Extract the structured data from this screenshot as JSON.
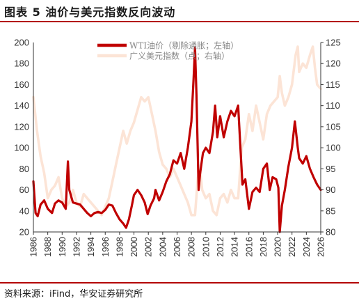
{
  "figure": {
    "title": "图表 5  油价与美元指数反向波动",
    "source": "资料来源：iFind，华安证券研究所"
  },
  "chart_data": {
    "type": "line",
    "title": "",
    "xlabel": "",
    "ylabel_left": "",
    "ylabel_right": "",
    "x_ticks": [
      1986,
      1988,
      1990,
      1992,
      1994,
      1996,
      1998,
      2000,
      2002,
      2004,
      2006,
      2008,
      2010,
      2012,
      2014,
      2016,
      2018,
      2020,
      2022,
      2024,
      2026
    ],
    "xlim": [
      1986,
      2026
    ],
    "y_left": {
      "lim": [
        20,
        200
      ],
      "ticks": [
        20,
        40,
        60,
        80,
        100,
        120,
        140,
        160,
        180,
        200
      ]
    },
    "y_right": {
      "lim": [
        80,
        125
      ],
      "ticks": [
        80,
        85,
        90,
        95,
        100,
        105,
        110,
        115,
        120,
        125
      ]
    },
    "grid": false,
    "legend_position": "top-center",
    "series": [
      {
        "name": "WTI油价（剔除通胀；左轴）",
        "axis": "left",
        "color": "#c00000",
        "points": [
          [
            1986.0,
            68
          ],
          [
            1986.3,
            38
          ],
          [
            1986.6,
            35
          ],
          [
            1987.0,
            46
          ],
          [
            1987.5,
            50
          ],
          [
            1988.0,
            42
          ],
          [
            1988.6,
            38
          ],
          [
            1989.0,
            47
          ],
          [
            1989.5,
            50
          ],
          [
            1990.0,
            48
          ],
          [
            1990.5,
            42
          ],
          [
            1990.8,
            87
          ],
          [
            1991.0,
            60
          ],
          [
            1991.5,
            48
          ],
          [
            1992.0,
            47
          ],
          [
            1992.5,
            46
          ],
          [
            1993.0,
            42
          ],
          [
            1993.5,
            38
          ],
          [
            1994.0,
            35
          ],
          [
            1994.5,
            38
          ],
          [
            1995.0,
            39
          ],
          [
            1995.5,
            38
          ],
          [
            1996.0,
            41
          ],
          [
            1996.5,
            46
          ],
          [
            1997.0,
            45
          ],
          [
            1997.5,
            38
          ],
          [
            1998.0,
            32
          ],
          [
            1998.5,
            28
          ],
          [
            1998.9,
            24
          ],
          [
            1999.3,
            32
          ],
          [
            1999.7,
            45
          ],
          [
            2000.0,
            55
          ],
          [
            2000.5,
            60
          ],
          [
            2001.0,
            55
          ],
          [
            2001.5,
            48
          ],
          [
            2001.9,
            37
          ],
          [
            2002.3,
            45
          ],
          [
            2002.8,
            52
          ],
          [
            2003.0,
            60
          ],
          [
            2003.5,
            50
          ],
          [
            2004.0,
            58
          ],
          [
            2004.5,
            68
          ],
          [
            2005.0,
            75
          ],
          [
            2005.5,
            88
          ],
          [
            2006.0,
            85
          ],
          [
            2006.5,
            95
          ],
          [
            2007.0,
            80
          ],
          [
            2007.5,
            100
          ],
          [
            2008.0,
            125
          ],
          [
            2008.3,
            165
          ],
          [
            2008.5,
            195
          ],
          [
            2008.7,
            150
          ],
          [
            2009.0,
            60
          ],
          [
            2009.2,
            75
          ],
          [
            2009.6,
            95
          ],
          [
            2010.0,
            100
          ],
          [
            2010.5,
            95
          ],
          [
            2011.0,
            115
          ],
          [
            2011.3,
            140
          ],
          [
            2011.6,
            110
          ],
          [
            2012.0,
            130
          ],
          [
            2012.5,
            110
          ],
          [
            2013.0,
            125
          ],
          [
            2013.5,
            135
          ],
          [
            2014.0,
            130
          ],
          [
            2014.5,
            140
          ],
          [
            2014.9,
            90
          ],
          [
            2015.1,
            65
          ],
          [
            2015.5,
            70
          ],
          [
            2016.0,
            42
          ],
          [
            2016.5,
            58
          ],
          [
            2017.0,
            62
          ],
          [
            2017.5,
            58
          ],
          [
            2018.0,
            80
          ],
          [
            2018.5,
            85
          ],
          [
            2018.9,
            60
          ],
          [
            2019.3,
            72
          ],
          [
            2019.8,
            70
          ],
          [
            2020.1,
            62
          ],
          [
            2020.3,
            20
          ],
          [
            2020.6,
            45
          ],
          [
            2021.0,
            60
          ],
          [
            2021.5,
            82
          ],
          [
            2022.0,
            100
          ],
          [
            2022.4,
            125
          ],
          [
            2022.8,
            100
          ],
          [
            2023.0,
            90
          ],
          [
            2023.5,
            85
          ],
          [
            2024.0,
            92
          ],
          [
            2024.5,
            80
          ],
          [
            2025.0,
            72
          ],
          [
            2025.5,
            65
          ],
          [
            2026.0,
            60
          ]
        ]
      },
      {
        "name": "广义美元指数（点；右轴）",
        "axis": "right",
        "color": "#fce4d6",
        "points": [
          [
            1986.0,
            112
          ],
          [
            1986.5,
            104
          ],
          [
            1987.0,
            98
          ],
          [
            1987.5,
            94
          ],
          [
            1988.0,
            88
          ],
          [
            1988.5,
            90
          ],
          [
            1989.0,
            91
          ],
          [
            1989.5,
            93
          ],
          [
            1990.0,
            88
          ],
          [
            1990.5,
            86
          ],
          [
            1991.0,
            87
          ],
          [
            1991.5,
            90
          ],
          [
            1992.0,
            87
          ],
          [
            1992.5,
            86
          ],
          [
            1993.0,
            89
          ],
          [
            1993.5,
            88
          ],
          [
            1994.0,
            87
          ],
          [
            1994.5,
            86
          ],
          [
            1995.0,
            85
          ],
          [
            1995.5,
            84
          ],
          [
            1996.0,
            86
          ],
          [
            1996.5,
            88
          ],
          [
            1997.0,
            92
          ],
          [
            1997.5,
            96
          ],
          [
            1998.0,
            100
          ],
          [
            1998.5,
            104
          ],
          [
            1999.0,
            101
          ],
          [
            1999.5,
            104
          ],
          [
            2000.0,
            106
          ],
          [
            2000.5,
            109
          ],
          [
            2001.0,
            112
          ],
          [
            2001.5,
            111
          ],
          [
            2002.0,
            112
          ],
          [
            2002.5,
            108
          ],
          [
            2003.0,
            104
          ],
          [
            2003.5,
            99
          ],
          [
            2004.0,
            96
          ],
          [
            2004.5,
            95
          ],
          [
            2005.0,
            93
          ],
          [
            2005.5,
            95
          ],
          [
            2006.0,
            93
          ],
          [
            2006.5,
            91
          ],
          [
            2007.0,
            89
          ],
          [
            2007.5,
            87
          ],
          [
            2008.0,
            84
          ],
          [
            2008.5,
            84
          ],
          [
            2008.9,
            93
          ],
          [
            2009.2,
            95
          ],
          [
            2009.5,
            90
          ],
          [
            2010.0,
            88
          ],
          [
            2010.5,
            89
          ],
          [
            2011.0,
            85
          ],
          [
            2011.5,
            84
          ],
          [
            2012.0,
            88
          ],
          [
            2012.5,
            89
          ],
          [
            2013.0,
            87
          ],
          [
            2013.5,
            90
          ],
          [
            2014.0,
            88
          ],
          [
            2014.5,
            88
          ],
          [
            2015.0,
            100
          ],
          [
            2015.5,
            102
          ],
          [
            2016.0,
            108
          ],
          [
            2016.5,
            104
          ],
          [
            2017.0,
            110
          ],
          [
            2017.5,
            106
          ],
          [
            2018.0,
            102
          ],
          [
            2018.5,
            108
          ],
          [
            2019.0,
            110
          ],
          [
            2019.5,
            111
          ],
          [
            2020.0,
            112
          ],
          [
            2020.3,
            117
          ],
          [
            2020.6,
            113
          ],
          [
            2021.0,
            110
          ],
          [
            2021.5,
            112
          ],
          [
            2022.0,
            115
          ],
          [
            2022.5,
            122
          ],
          [
            2022.8,
            124
          ],
          [
            2023.0,
            118
          ],
          [
            2023.5,
            120
          ],
          [
            2024.0,
            119
          ],
          [
            2024.5,
            122
          ],
          [
            2024.9,
            124
          ],
          [
            2025.2,
            119
          ],
          [
            2025.5,
            115
          ],
          [
            2026.0,
            114
          ]
        ]
      }
    ]
  }
}
